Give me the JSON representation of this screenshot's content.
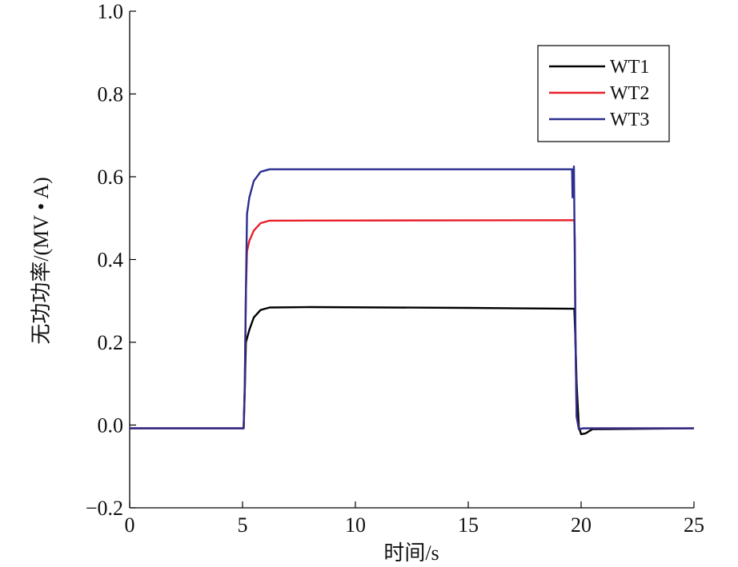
{
  "chart_data": {
    "type": "line",
    "title": "",
    "xlabel": "时间/s",
    "ylabel": "无功功率/(MV • A)",
    "xlim": [
      0,
      25
    ],
    "ylim": [
      -0.2,
      1.0
    ],
    "xticks": [
      0,
      5,
      10,
      15,
      20,
      25
    ],
    "xtick_labels": [
      "0",
      "5",
      "10",
      "15",
      "20",
      "25"
    ],
    "yticks": [
      -0.2,
      0.0,
      0.2,
      0.4,
      0.6,
      0.8,
      1.0
    ],
    "ytick_labels": [
      "−0.2",
      "0.0",
      "0.2",
      "0.4",
      "0.6",
      "0.8",
      "1.0"
    ],
    "grid": false,
    "legend_position": "top-right",
    "series": [
      {
        "name": "WT1",
        "color": "#000000",
        "points": [
          [
            0,
            -0.008
          ],
          [
            5.05,
            -0.008
          ],
          [
            5.1,
            0.08
          ],
          [
            5.15,
            0.2
          ],
          [
            5.3,
            0.23
          ],
          [
            5.5,
            0.26
          ],
          [
            5.8,
            0.278
          ],
          [
            6.2,
            0.284
          ],
          [
            8,
            0.285
          ],
          [
            15,
            0.283
          ],
          [
            19.7,
            0.281
          ],
          [
            19.75,
            0.2
          ],
          [
            19.8,
            0.1
          ],
          [
            19.9,
            -0.005
          ],
          [
            20.0,
            -0.022
          ],
          [
            20.2,
            -0.02
          ],
          [
            20.5,
            -0.01
          ],
          [
            25,
            -0.008
          ]
        ]
      },
      {
        "name": "WT2",
        "color": "#e8202a",
        "points": [
          [
            0,
            -0.008
          ],
          [
            5.05,
            -0.008
          ],
          [
            5.1,
            0.1
          ],
          [
            5.15,
            0.32
          ],
          [
            5.2,
            0.42
          ],
          [
            5.3,
            0.445
          ],
          [
            5.5,
            0.47
          ],
          [
            5.8,
            0.488
          ],
          [
            6.2,
            0.494
          ],
          [
            19.7,
            0.495
          ],
          [
            19.72,
            0.45
          ],
          [
            19.75,
            0.2
          ],
          [
            19.8,
            0.02
          ],
          [
            19.9,
            -0.01
          ],
          [
            20.1,
            -0.008
          ],
          [
            25,
            -0.008
          ]
        ]
      },
      {
        "name": "WT3",
        "color": "#2b2f8f",
        "points": [
          [
            0,
            -0.008
          ],
          [
            5.05,
            -0.008
          ],
          [
            5.1,
            0.09
          ],
          [
            5.15,
            0.32
          ],
          [
            5.2,
            0.51
          ],
          [
            5.3,
            0.55
          ],
          [
            5.5,
            0.59
          ],
          [
            5.8,
            0.612
          ],
          [
            6.2,
            0.618
          ],
          [
            19.6,
            0.618
          ],
          [
            19.62,
            0.55
          ],
          [
            19.68,
            0.625
          ],
          [
            19.72,
            0.4
          ],
          [
            19.75,
            0.2
          ],
          [
            19.8,
            0.02
          ],
          [
            19.9,
            -0.01
          ],
          [
            20.1,
            -0.008
          ],
          [
            25,
            -0.008
          ]
        ]
      }
    ]
  }
}
